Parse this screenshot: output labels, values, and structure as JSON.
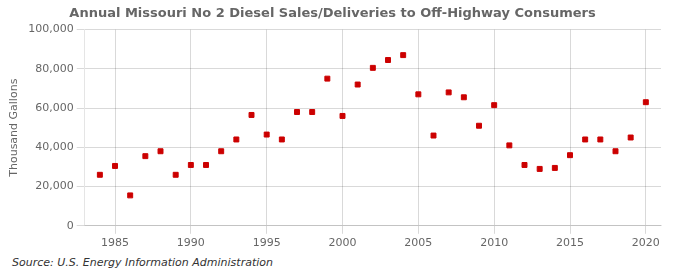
{
  "chart_data": {
    "type": "scatter",
    "title": "Annual Missouri No 2 Diesel Sales/Deliveries to Off-Highway Consumers",
    "ylabel": "Thousand Gallons",
    "annotations": [
      "Source: U.S. Energy Information Administration"
    ],
    "x": [
      1984,
      1985,
      1986,
      1987,
      1988,
      1989,
      1990,
      1991,
      1992,
      1993,
      1994,
      1995,
      1996,
      1997,
      1998,
      1999,
      2000,
      2001,
      2002,
      2003,
      2004,
      2005,
      2006,
      2007,
      2008,
      2009,
      2010,
      2011,
      2012,
      2013,
      2014,
      2015,
      2016,
      2017,
      2018,
      2019,
      2020
    ],
    "values": [
      26000,
      30500,
      15500,
      35500,
      38000,
      26000,
      31000,
      31000,
      38000,
      44000,
      56500,
      46500,
      44000,
      58000,
      58000,
      75000,
      56000,
      72000,
      80500,
      84500,
      87000,
      67000,
      46000,
      68000,
      65500,
      51000,
      61500,
      41000,
      31000,
      29000,
      29500,
      36000,
      44000,
      44000,
      38000,
      45000,
      63000
    ],
    "color": "#cc0000",
    "marker": "square",
    "xlim": [
      1983,
      2021
    ],
    "xticks": [
      1985,
      1990,
      1995,
      2000,
      2005,
      2010,
      2015,
      2020
    ],
    "ylim": [
      0,
      100000
    ],
    "yticks": [
      0,
      {
        "value": 20000,
        "label": "20,000"
      },
      {
        "value": 40000,
        "label": "40,000"
      },
      {
        "value": 60000,
        "label": "60,000"
      },
      {
        "value": 80000,
        "label": "80,000"
      },
      {
        "value": 100000,
        "label": "100,000"
      }
    ],
    "grid": true
  }
}
